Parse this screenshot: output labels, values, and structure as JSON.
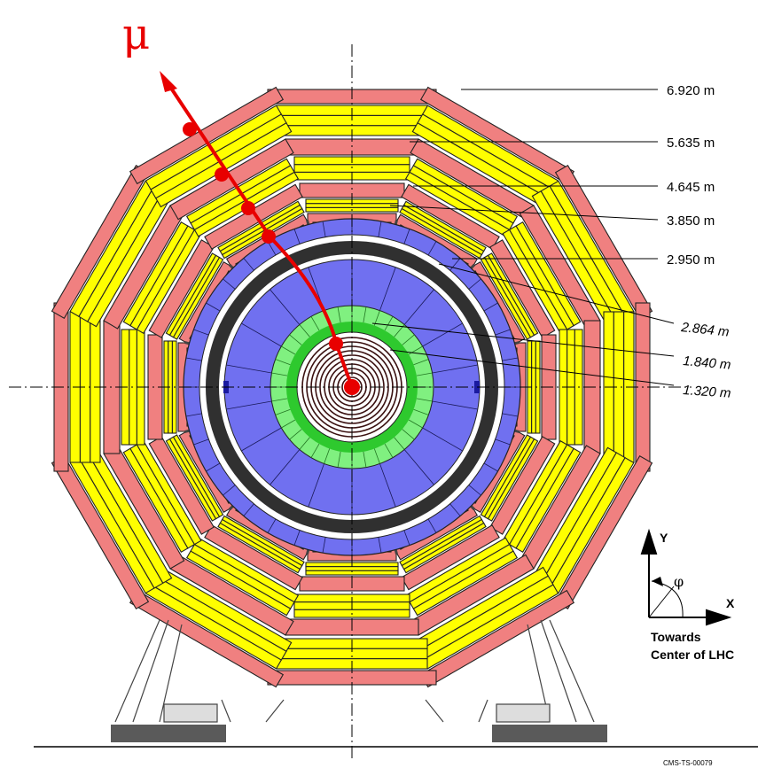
{
  "particle": "μ",
  "radii": [
    {
      "label": "6.920  m",
      "r": 6.92
    },
    {
      "label": "5.635  m",
      "r": 5.635
    },
    {
      "label": "4.645  m",
      "r": 4.645
    },
    {
      "label": "3.850  m",
      "r": 3.85
    },
    {
      "label": "2.950  m",
      "r": 2.95
    },
    {
      "label": "2.864  m",
      "r": 2.864
    },
    {
      "label": "1.840  m",
      "r": 1.84
    },
    {
      "label": "1.320  m",
      "r": 1.32
    }
  ],
  "axes": {
    "y": "Y",
    "x": "X",
    "phi": "φ"
  },
  "direction": {
    "line1": "Towards",
    "line2": "Center of LHC"
  },
  "reference": "CMS-TS-00079",
  "colors": {
    "muon_chamber": "#f08080",
    "return_yoke": "#ffff00",
    "calorimeter": "#7070f0",
    "ecal": "#80f080",
    "solenoid": "#303030",
    "track": "#e80000"
  }
}
